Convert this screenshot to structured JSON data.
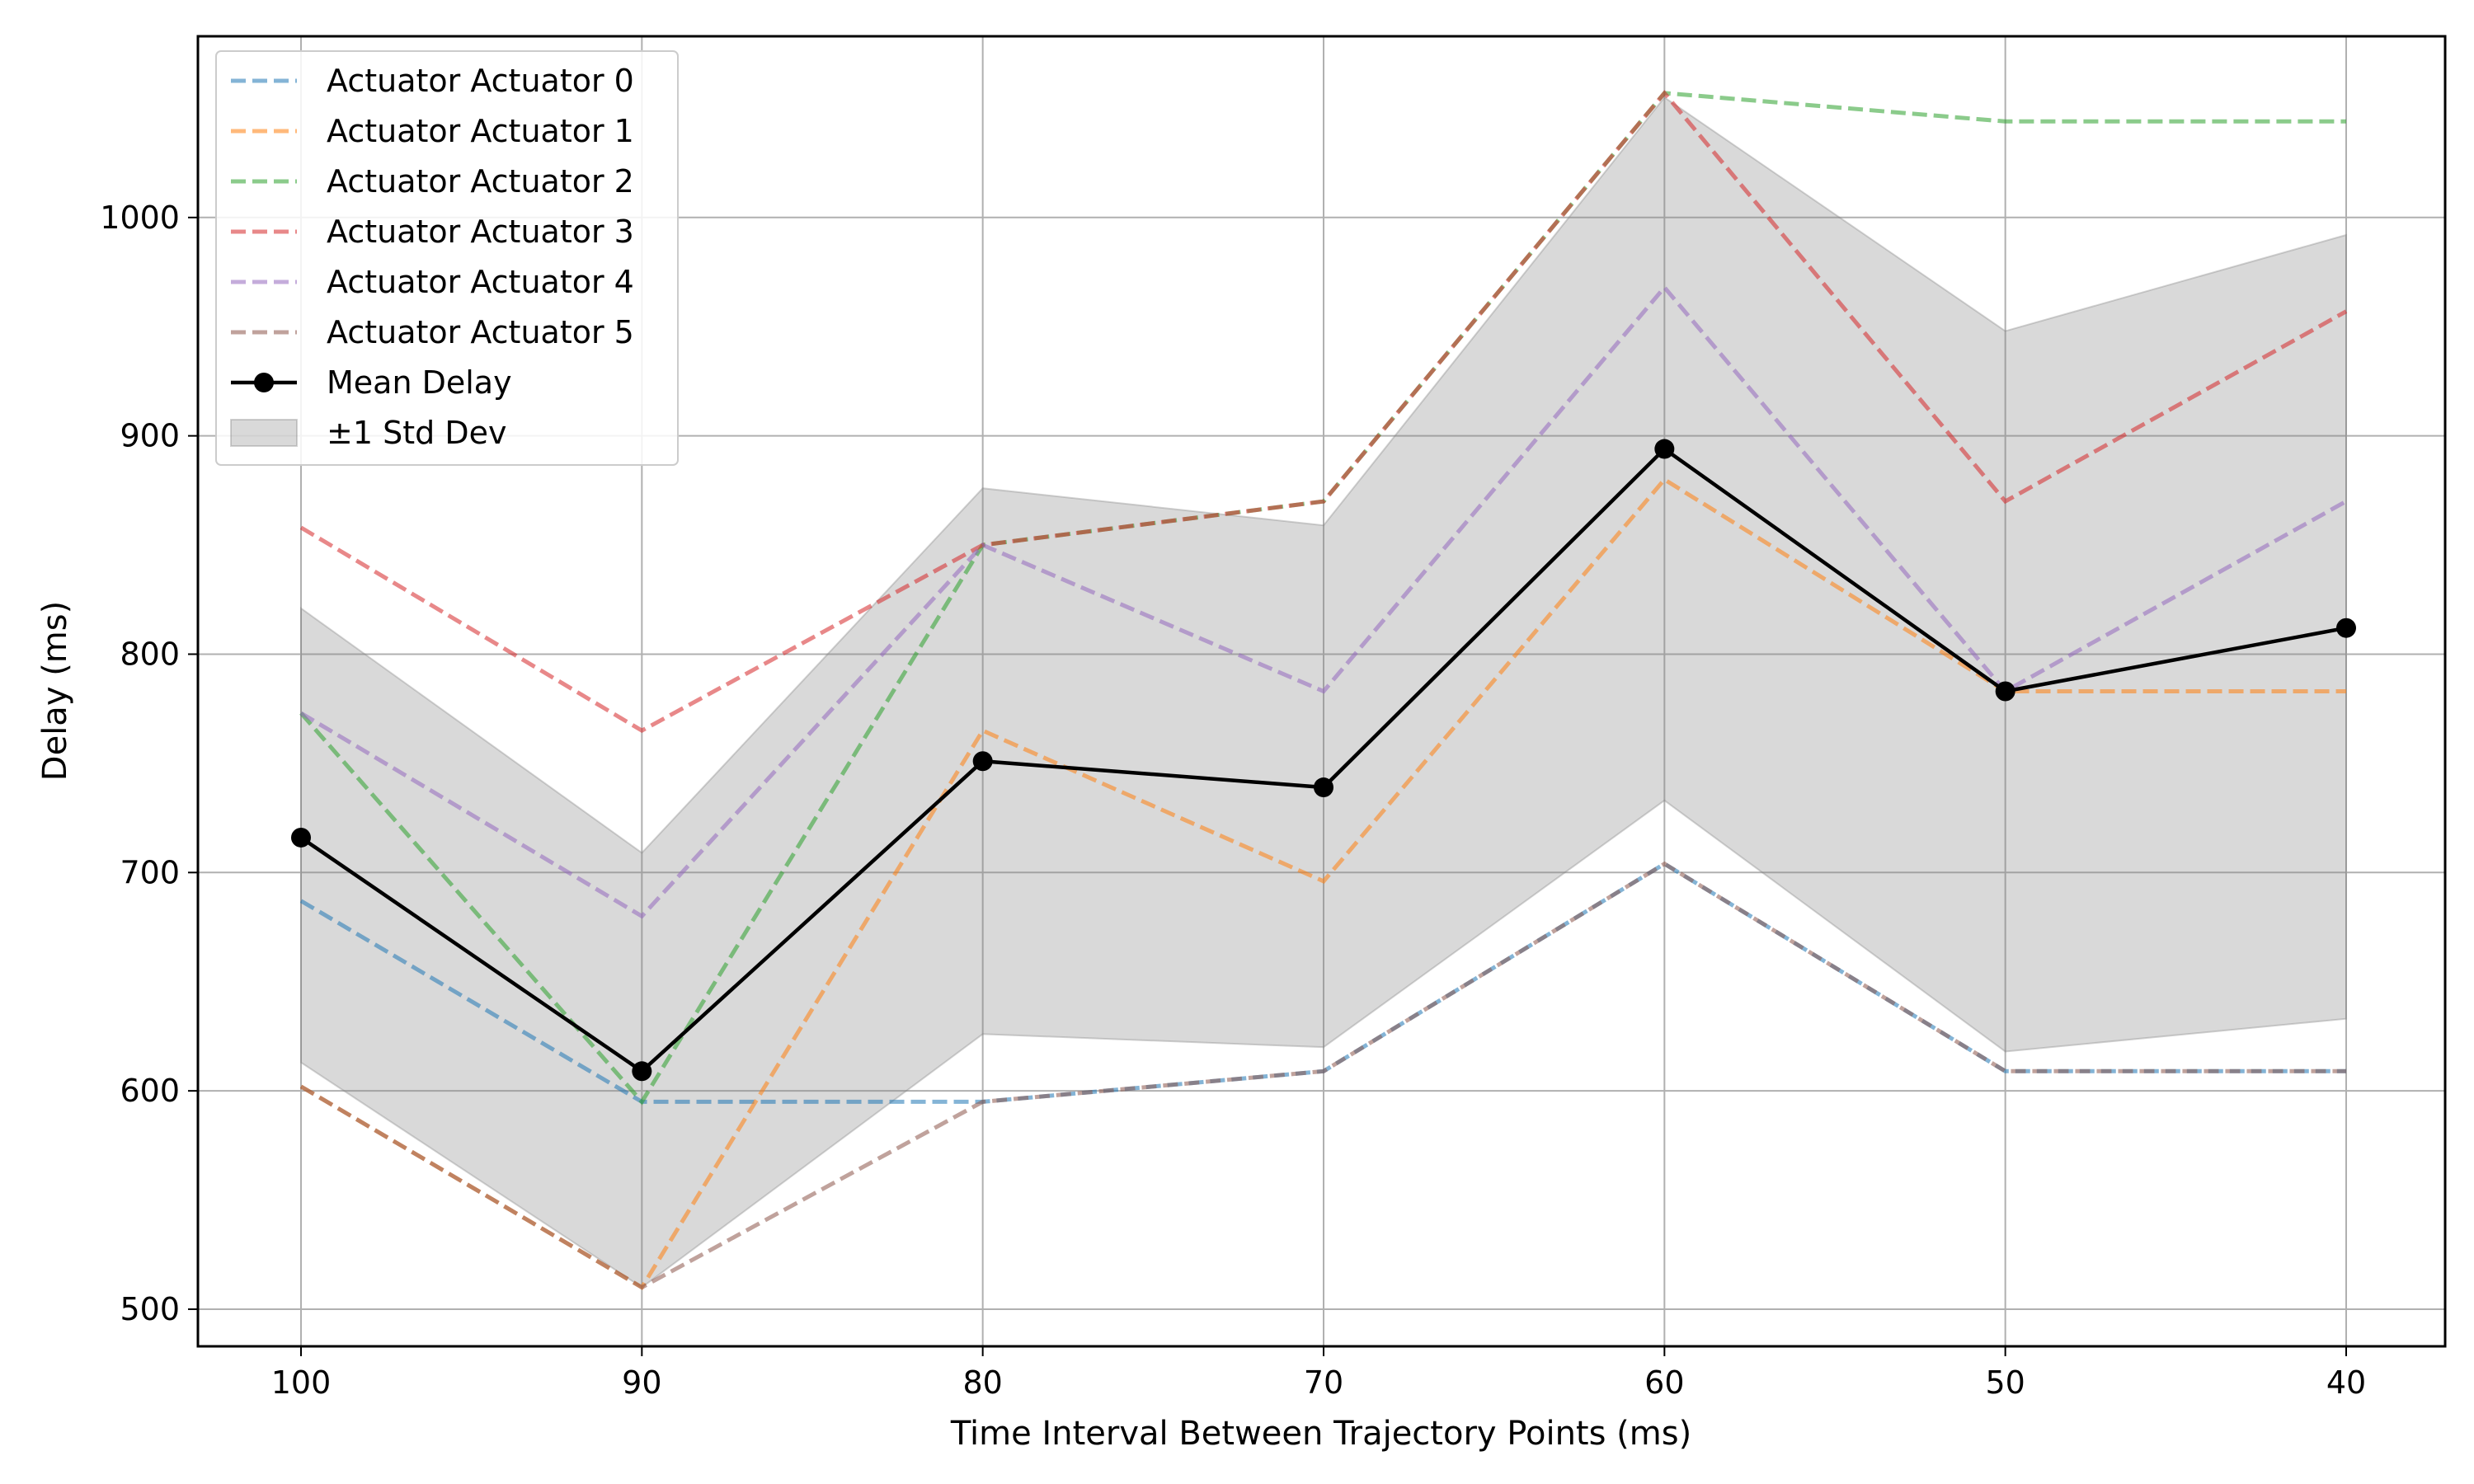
{
  "chart_data": {
    "type": "line",
    "title": "",
    "xlabel": "Time Interval Between Trajectory Points (ms)",
    "ylabel": "Delay (ms)",
    "x": [
      100,
      90,
      80,
      70,
      60,
      50,
      40
    ],
    "x_tick_labels": [
      "100",
      "90",
      "80",
      "70",
      "60",
      "50",
      "40"
    ],
    "y_ticks": [
      500,
      600,
      700,
      800,
      900,
      1000
    ],
    "y_tick_labels": [
      "500",
      "600",
      "700",
      "800",
      "900",
      "1000"
    ],
    "ylim": [
      483,
      1083
    ],
    "x_inverted": true,
    "grid": true,
    "legend_position": "top-left",
    "series": [
      {
        "name": "Actuator Actuator 0",
        "color": "#1f77b4",
        "style": "dashed",
        "values": [
          687,
          595,
          595,
          609,
          704,
          609,
          609
        ]
      },
      {
        "name": "Actuator Actuator 1",
        "color": "#ff7f0e",
        "style": "dashed",
        "values": [
          602,
          510,
          765,
          696,
          880,
          783,
          783
        ]
      },
      {
        "name": "Actuator Actuator 2",
        "color": "#2ca02c",
        "style": "dashed",
        "values": [
          773,
          595,
          850,
          870,
          1057,
          1044,
          1044
        ]
      },
      {
        "name": "Actuator Actuator 3",
        "color": "#d62728",
        "style": "dashed",
        "values": [
          858,
          765,
          850,
          870,
          1057,
          870,
          957
        ]
      },
      {
        "name": "Actuator Actuator 4",
        "color": "#9467bd",
        "style": "dashed",
        "values": [
          773,
          680,
          850,
          783,
          968,
          783,
          870
        ]
      },
      {
        "name": "Actuator Actuator 5",
        "color": "#8c564b",
        "style": "dashed",
        "values": [
          602,
          510,
          595,
          609,
          704,
          609,
          609
        ]
      }
    ],
    "mean": {
      "name": "Mean Delay",
      "color": "#000000",
      "values": [
        716,
        609,
        751,
        739,
        894,
        783,
        812
      ]
    },
    "band": {
      "name": "±1 Std Dev",
      "color": "#808080",
      "lower": [
        613,
        510,
        626,
        620,
        733,
        618,
        633
      ],
      "upper": [
        821,
        709,
        876,
        859,
        1055,
        948,
        992
      ]
    }
  }
}
